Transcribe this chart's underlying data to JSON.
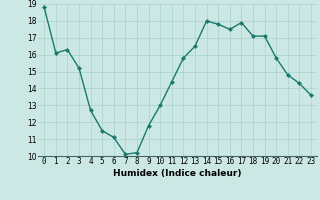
{
  "x": [
    0,
    1,
    2,
    3,
    4,
    5,
    6,
    7,
    8,
    9,
    10,
    11,
    12,
    13,
    14,
    15,
    16,
    17,
    18,
    19,
    20,
    21,
    22,
    23
  ],
  "y": [
    18.8,
    16.1,
    16.3,
    15.2,
    12.7,
    11.5,
    11.1,
    10.1,
    10.2,
    11.8,
    13.0,
    14.4,
    15.8,
    16.5,
    18.0,
    17.8,
    17.5,
    17.9,
    17.1,
    17.1,
    15.8,
    14.8,
    14.3,
    13.6
  ],
  "line_color": "#1a7a6e",
  "marker": "D",
  "marker_size": 2.0,
  "bg_color": "#cce8e4",
  "grid_color": "#afd4cf",
  "xlabel": "Humidex (Indice chaleur)",
  "ylim": [
    10,
    19
  ],
  "xlim_min": -0.5,
  "xlim_max": 23.5,
  "yticks": [
    10,
    11,
    12,
    13,
    14,
    15,
    16,
    17,
    18,
    19
  ],
  "xtick_labels": [
    "0",
    "1",
    "2",
    "3",
    "4",
    "5",
    "6",
    "7",
    "8",
    "9",
    "10",
    "11",
    "12",
    "13",
    "14",
    "15",
    "16",
    "17",
    "18",
    "19",
    "20",
    "21",
    "22",
    "23"
  ],
  "label_fontsize": 6.5,
  "tick_fontsize": 5.5,
  "line_width": 1.0
}
